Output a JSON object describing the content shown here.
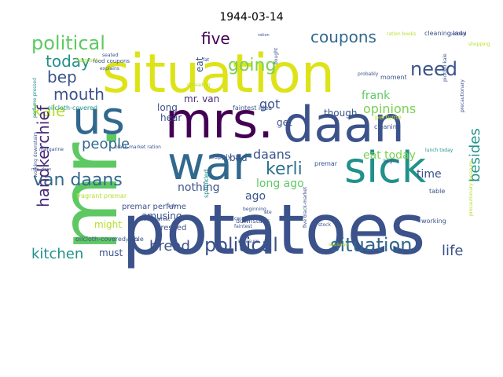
{
  "title": "1944-03-14",
  "words": [
    {
      "text": "potatoes",
      "color": "#3b528b"
    },
    {
      "text": "situation",
      "color": "#dde318"
    },
    {
      "text": "mrs.",
      "color": "#440154"
    },
    {
      "text": "daan",
      "color": "#3b528b"
    },
    {
      "text": "mr.",
      "color": "#5ec962"
    },
    {
      "text": "war",
      "color": "#31688e"
    },
    {
      "text": "sick",
      "color": "#21918c"
    },
    {
      "text": "us",
      "color": "#31688e"
    },
    {
      "text": "political",
      "color": "#5ec962"
    },
    {
      "text": "political",
      "color": "#3b528b"
    },
    {
      "text": "situation",
      "color": "#31688e"
    },
    {
      "text": "need",
      "color": "#3b528b"
    },
    {
      "text": "coupons",
      "color": "#31688e"
    },
    {
      "text": "going",
      "color": "#7ad151"
    },
    {
      "text": "five",
      "color": "#440154"
    },
    {
      "text": "today",
      "color": "#21918c"
    },
    {
      "text": "bep",
      "color": "#3b528b"
    },
    {
      "text": "mouth",
      "color": "#3b528b"
    },
    {
      "text": "kale",
      "color": "#b5de2b"
    },
    {
      "text": "got",
      "color": "#3b528b"
    },
    {
      "text": "opinions",
      "color": "#7ad151"
    },
    {
      "text": "frank",
      "color": "#5ec962"
    },
    {
      "text": "kerli",
      "color": "#2c728e"
    },
    {
      "text": "van daans",
      "color": "#31688e"
    },
    {
      "text": "daans",
      "color": "#3b528b"
    },
    {
      "text": "handkerchief",
      "color": "#482878"
    },
    {
      "text": "people",
      "color": "#31688e"
    },
    {
      "text": "besides",
      "color": "#21918c"
    },
    {
      "text": "kitchen",
      "color": "#21918c"
    },
    {
      "text": "bread",
      "color": "#3b528b"
    },
    {
      "text": "life",
      "color": "#3b528b"
    },
    {
      "text": "nothing",
      "color": "#3b528b"
    },
    {
      "text": "long ago",
      "color": "#5ec962"
    },
    {
      "text": "eat today",
      "color": "#7ad151"
    },
    {
      "text": "time",
      "color": "#3b528b"
    },
    {
      "text": "must",
      "color": "#3b528b"
    },
    {
      "text": "might",
      "color": "#b5de2b"
    },
    {
      "text": "amusing",
      "color": "#3b528b"
    },
    {
      "text": "long",
      "color": "#3b528b"
    },
    {
      "text": "hear",
      "color": "#3b528b"
    },
    {
      "text": "though",
      "color": "#3b528b"
    },
    {
      "text": "ago",
      "color": "#3b528b"
    },
    {
      "text": "bad",
      "color": "#3b528b"
    },
    {
      "text": "get",
      "color": "#3b528b"
    },
    {
      "text": "mr. van",
      "color": "#482878"
    },
    {
      "text": "pressed",
      "color": "#3b528b"
    },
    {
      "text": "eat",
      "color": "#3b528b"
    },
    {
      "text": "premar perfume",
      "color": "#3b528b"
    },
    {
      "text": "fragrant premar",
      "color": "#b5de2b"
    },
    {
      "text": "cleaning lady",
      "color": "#3b528b"
    },
    {
      "text": "cleaning",
      "color": "#3b528b"
    },
    {
      "text": "perfume",
      "color": "#b5de2b"
    },
    {
      "text": "food coupons",
      "color": "#3b528b"
    },
    {
      "text": "black-market ration",
      "color": "#3b528b"
    },
    {
      "text": "oilcloth-covered table",
      "color": "#3b528b"
    },
    {
      "text": "oilcloth-covered",
      "color": "#21918c"
    },
    {
      "text": "perfume pressed",
      "color": "#21918c"
    },
    {
      "text": "working downstairs",
      "color": "#3b528b"
    },
    {
      "text": "faintest idea",
      "color": "#3b528b"
    },
    {
      "text": "supply us",
      "color": "#3b528b"
    },
    {
      "text": "five black-market",
      "color": "#3b528b"
    },
    {
      "text": "downstairs",
      "color": "#3b528b"
    },
    {
      "text": "fragrant",
      "color": "#b5de2b"
    },
    {
      "text": "seated",
      "color": "#3b528b"
    },
    {
      "text": "table",
      "color": "#3b528b"
    },
    {
      "text": "working",
      "color": "#3b528b"
    },
    {
      "text": "moment",
      "color": "#3b528b"
    },
    {
      "text": "probably",
      "color": "#3b528b"
    },
    {
      "text": "lady",
      "color": "#3b528b"
    },
    {
      "text": "sprinkled",
      "color": "#21918c"
    },
    {
      "text": "premar",
      "color": "#3b528b"
    },
    {
      "text": "ration books",
      "color": "#b5de2b"
    },
    {
      "text": "pickled",
      "color": "#3b528b"
    },
    {
      "text": "lunch today",
      "color": "#21918c"
    },
    {
      "text": "precautionary measure",
      "color": "#b5de2b"
    },
    {
      "text": "precautionary",
      "color": "#3b528b"
    },
    {
      "text": "fat",
      "color": "#3b528b"
    },
    {
      "text": "faintest",
      "color": "#3b528b"
    },
    {
      "text": "shopping",
      "color": "#b5de2b"
    },
    {
      "text": "cereal",
      "color": "#3b528b"
    },
    {
      "text": "years",
      "color": "#3b528b"
    },
    {
      "text": "ration",
      "color": "#3b528b"
    },
    {
      "text": "pickled kale",
      "color": "#3b528b"
    },
    {
      "text": "measure",
      "color": "#3b528b"
    },
    {
      "text": "black-market",
      "color": "#3b528b"
    },
    {
      "text": "beginning",
      "color": "#3b528b"
    },
    {
      "text": "spreading",
      "color": "#b5de2b"
    },
    {
      "text": "margarine",
      "color": "#3b528b"
    },
    {
      "text": "explains",
      "color": "#3b528b"
    },
    {
      "text": "stock",
      "color": "#3b528b"
    },
    {
      "text": "ate",
      "color": "#3b528b"
    },
    {
      "text": "mrs. daan",
      "color": "#3b528b"
    },
    {
      "text": "bought",
      "color": "#3b528b"
    },
    {
      "text": "begins",
      "color": "#3b528b"
    },
    {
      "text": "sausage",
      "color": "#b5de2b"
    }
  ]
}
